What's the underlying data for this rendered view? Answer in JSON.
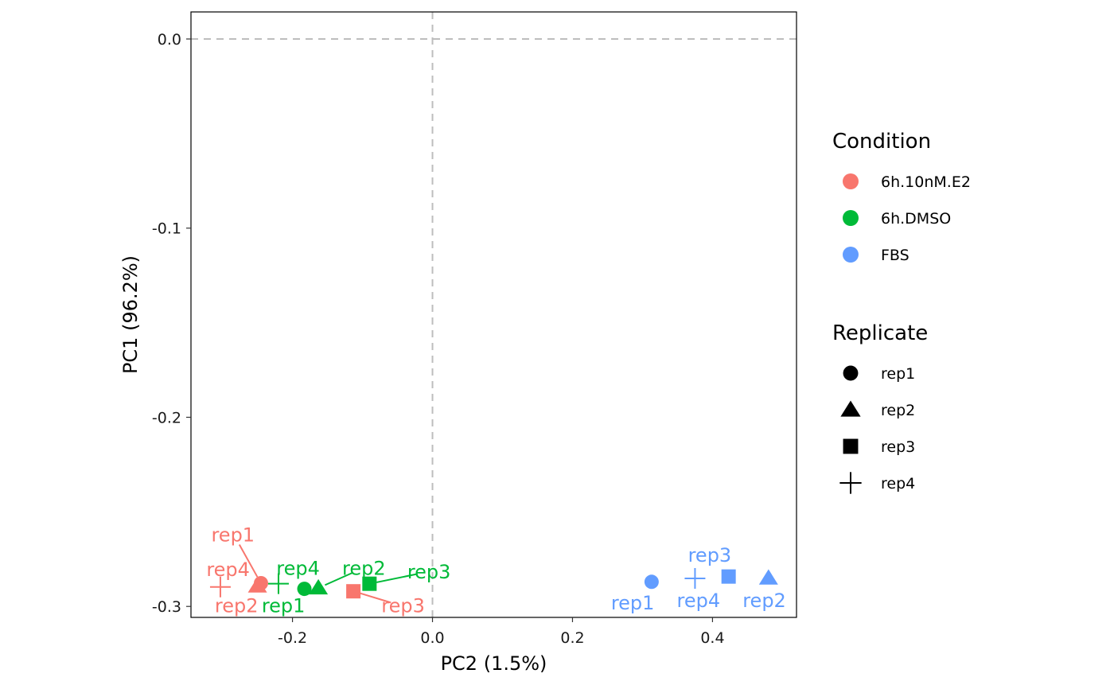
{
  "chart_data": {
    "type": "scatter",
    "title": "",
    "xlabel": "PC2 (1.5%)",
    "ylabel": "PC1 (96.2%)",
    "xlim": [
      -0.345,
      0.52
    ],
    "ylim": [
      -0.3058,
      0.0143
    ],
    "x_ticks": [
      {
        "value": -0.2,
        "label": "-0.2"
      },
      {
        "value": 0.0,
        "label": "0.0"
      },
      {
        "value": 0.2,
        "label": "0.2"
      },
      {
        "value": 0.4,
        "label": "0.4"
      }
    ],
    "y_ticks": [
      {
        "value": 0.0,
        "label": "0.0"
      },
      {
        "value": -0.1,
        "label": "-0.1"
      },
      {
        "value": -0.2,
        "label": "-0.2"
      },
      {
        "value": -0.3,
        "label": "-0.3"
      }
    ],
    "reference_lines": {
      "x": 0.0,
      "y": 0.0,
      "style": "dashed",
      "color": "#bdbdbd"
    },
    "grid": false,
    "legend_position": "right",
    "conditions": [
      {
        "name": "6h.10nM.E2",
        "color": "#F8766D"
      },
      {
        "name": "6h.DMSO",
        "color": "#00BA38"
      },
      {
        "name": "FBS",
        "color": "#619CFF"
      }
    ],
    "replicates": [
      {
        "name": "rep1",
        "shape": "circle"
      },
      {
        "name": "rep2",
        "shape": "triangle"
      },
      {
        "name": "rep3",
        "shape": "square"
      },
      {
        "name": "rep4",
        "shape": "plus"
      }
    ],
    "legend": {
      "condition_title": "Condition",
      "replicate_title": "Replicate"
    },
    "points": [
      {
        "condition": "6h.10nM.E2",
        "replicate": "rep1",
        "x": -0.245,
        "y": -0.2877,
        "label": "rep1",
        "label_x": -0.285,
        "label_y": -0.2622
      },
      {
        "condition": "6h.10nM.E2",
        "replicate": "rep2",
        "x": -0.25,
        "y": -0.2892,
        "label": "rep2",
        "label_x": -0.28,
        "label_y": -0.2996
      },
      {
        "condition": "6h.10nM.E2",
        "replicate": "rep3",
        "x": -0.113,
        "y": -0.292,
        "label": "rep3",
        "label_x": -0.042,
        "label_y": -0.2996
      },
      {
        "condition": "6h.10nM.E2",
        "replicate": "rep4",
        "x": -0.303,
        "y": -0.2897,
        "label": "rep4",
        "label_x": -0.292,
        "label_y": -0.2805
      },
      {
        "condition": "6h.DMSO",
        "replicate": "rep1",
        "x": -0.183,
        "y": -0.2907,
        "label": "rep1",
        "label_x": -0.213,
        "label_y": -0.2996
      },
      {
        "condition": "6h.DMSO",
        "replicate": "rep2",
        "x": -0.163,
        "y": -0.2902,
        "label": "rep2",
        "label_x": -0.098,
        "label_y": -0.28
      },
      {
        "condition": "6h.DMSO",
        "replicate": "rep3",
        "x": -0.09,
        "y": -0.288,
        "label": "rep3",
        "label_x": -0.005,
        "label_y": -0.2818
      },
      {
        "condition": "6h.DMSO",
        "replicate": "rep4",
        "x": -0.22,
        "y": -0.288,
        "label": "rep4",
        "label_x": -0.192,
        "label_y": -0.28
      },
      {
        "condition": "FBS",
        "replicate": "rep1",
        "x": 0.313,
        "y": -0.287,
        "label": "rep1",
        "label_x": 0.286,
        "label_y": -0.2982
      },
      {
        "condition": "FBS",
        "replicate": "rep2",
        "x": 0.48,
        "y": -0.285,
        "label": "rep2",
        "label_x": 0.474,
        "label_y": -0.297
      },
      {
        "condition": "FBS",
        "replicate": "rep3",
        "x": 0.423,
        "y": -0.2842,
        "label": "rep3",
        "label_x": 0.396,
        "label_y": -0.273
      },
      {
        "condition": "FBS",
        "replicate": "rep4",
        "x": 0.375,
        "y": -0.2852,
        "label": "rep4",
        "label_x": 0.38,
        "label_y": -0.297
      }
    ]
  }
}
